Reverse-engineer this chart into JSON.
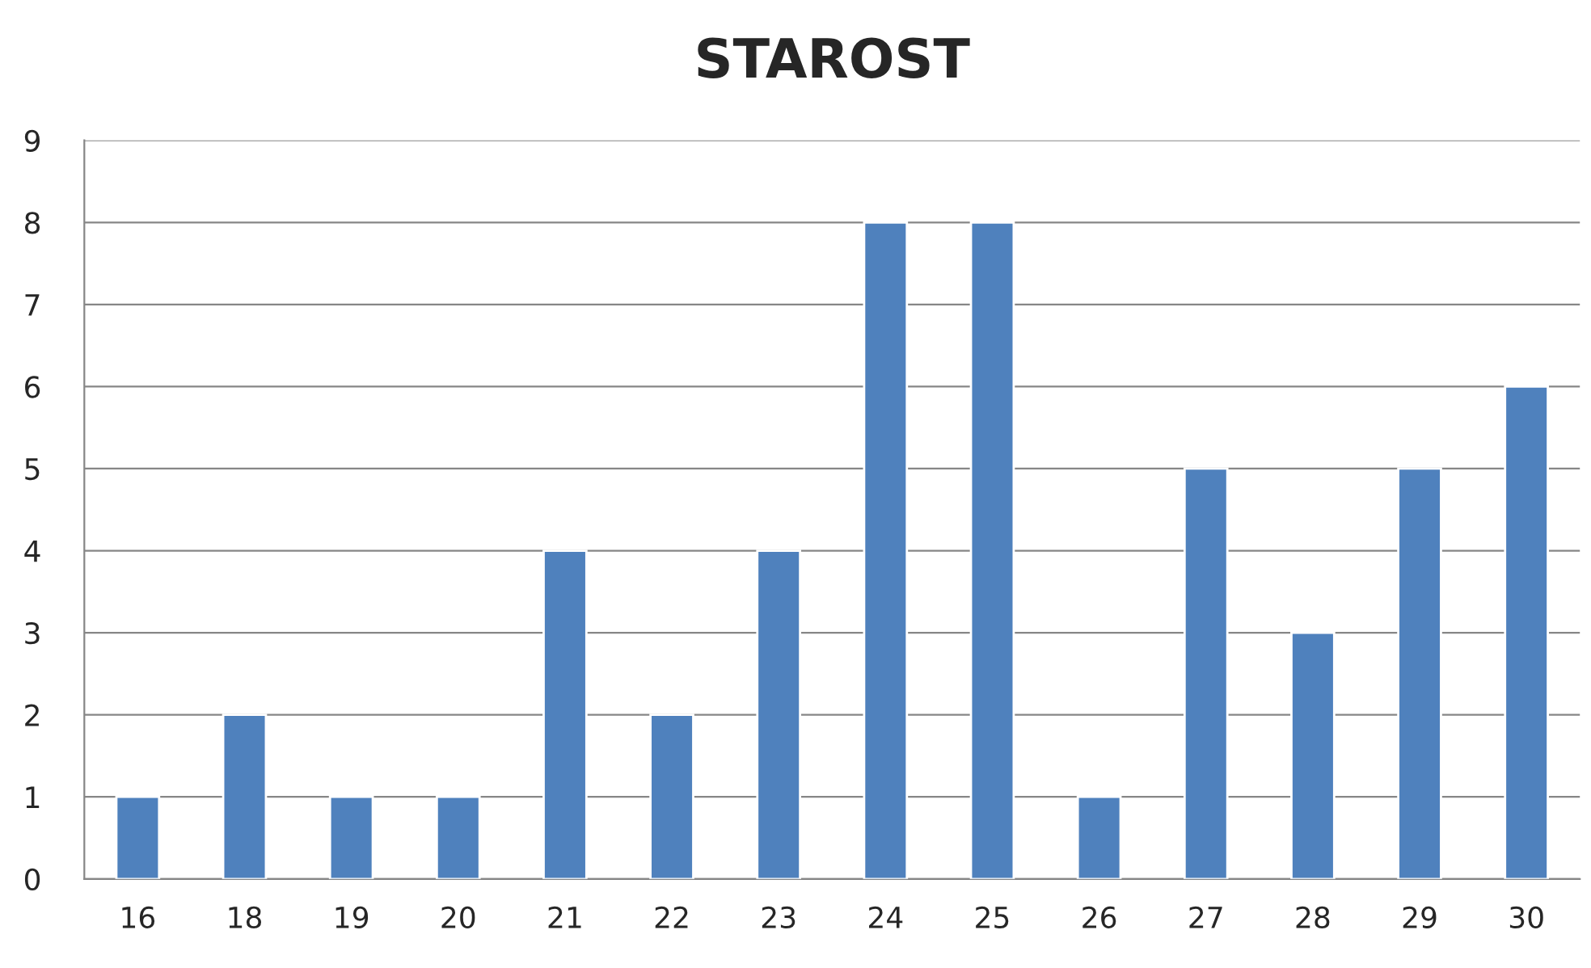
{
  "chart_data": {
    "type": "bar",
    "title": "STAROST",
    "categories": [
      "16",
      "18",
      "19",
      "20",
      "21",
      "22",
      "23",
      "24",
      "25",
      "26",
      "27",
      "28",
      "29",
      "30"
    ],
    "values": [
      1,
      2,
      1,
      1,
      4,
      2,
      4,
      8,
      8,
      1,
      5,
      3,
      5,
      6
    ],
    "color": "#4f81bd",
    "ylim": [
      0,
      9
    ],
    "yticks": [
      0,
      1,
      2,
      3,
      4,
      5,
      6,
      7,
      8,
      9
    ],
    "grid": "y"
  }
}
